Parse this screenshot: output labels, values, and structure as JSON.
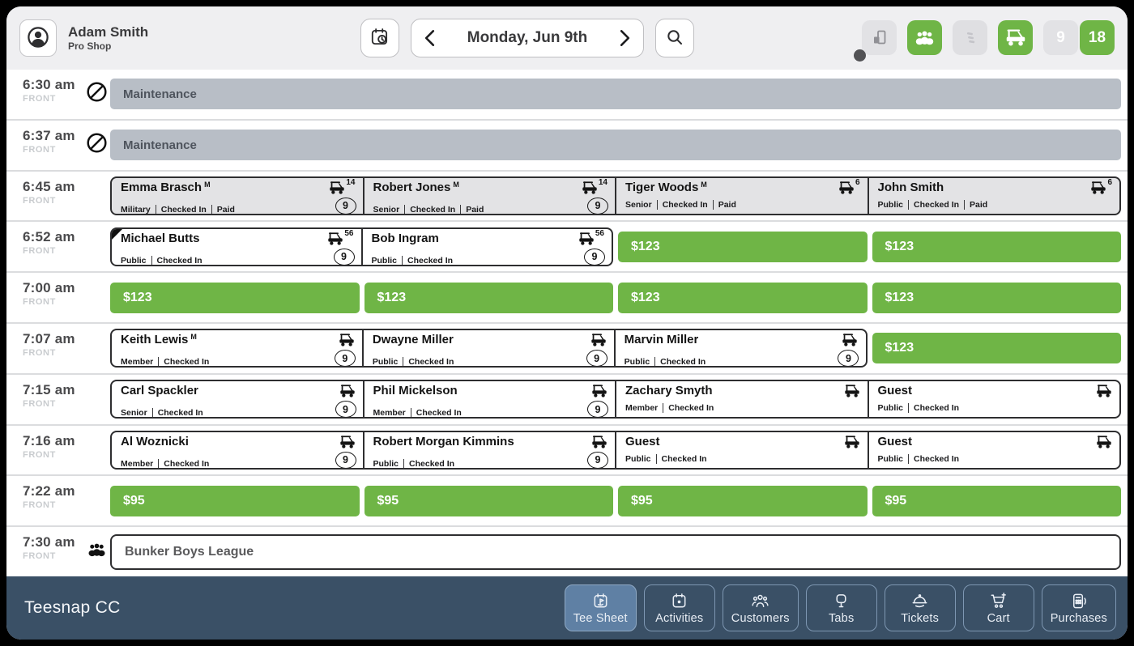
{
  "colors": {
    "accent_green": "#6FB546",
    "maintenance_bg": "#B8BEC6",
    "nav_bg": "#3A5066",
    "nav_active_bg": "#5F80A4",
    "checked_in_bg": "#E3E3E5"
  },
  "labels": {
    "member_badge": "M"
  },
  "header": {
    "user": {
      "name": "Adam Smith",
      "role": "Pro Shop"
    },
    "date_label": "Monday, Jun 9th",
    "toolbar": {
      "groups": [
        {
          "buttons": [
            {
              "name": "terminal",
              "icon": "terminal-icon",
              "variant": "gray"
            }
          ]
        },
        {
          "buttons": [
            {
              "name": "players-filter",
              "icon": "people-icon",
              "variant": "green"
            }
          ]
        },
        {
          "buttons": [
            {
              "name": "walking-filter",
              "icon": "walking-icon",
              "variant": "disabled"
            }
          ]
        },
        {
          "buttons": [
            {
              "name": "cart-filter",
              "icon": "golf-cart-icon",
              "variant": "green"
            }
          ]
        },
        {
          "buttons": [
            {
              "name": "holes-9",
              "label": "9",
              "variant": "gray"
            },
            {
              "name": "holes-18",
              "label": "18",
              "variant": "green"
            }
          ]
        }
      ]
    }
  },
  "tee_sheet": {
    "rows": [
      {
        "time": "6:30 am",
        "course": "FRONT",
        "row_icon": "blocked-icon",
        "items": [
          {
            "type": "maintenance",
            "start": 0,
            "span": 4,
            "label": "Maintenance"
          }
        ]
      },
      {
        "time": "6:37 am",
        "course": "FRONT",
        "row_icon": "blocked-icon",
        "items": [
          {
            "type": "maintenance",
            "start": 0,
            "span": 4,
            "label": "Maintenance"
          }
        ]
      },
      {
        "time": "6:45 am",
        "course": "FRONT",
        "row_icon": null,
        "items": [
          {
            "type": "group",
            "start": 0,
            "span": 4,
            "checked": true,
            "players": [
              {
                "name": "Emma Brasch",
                "member": true,
                "tags": [
                  "Military",
                  "Checked In",
                  "Paid"
                ],
                "cart": "14",
                "holes": "9",
                "note": false
              },
              {
                "name": "Robert Jones",
                "member": true,
                "tags": [
                  "Senior",
                  "Checked In",
                  "Paid"
                ],
                "cart": "14",
                "holes": "9",
                "note": false
              },
              {
                "name": "Tiger Woods",
                "member": true,
                "tags": [
                  "Senior",
                  "Checked In",
                  "Paid"
                ],
                "cart": "6",
                "holes": null,
                "note": false
              },
              {
                "name": "John Smith",
                "member": false,
                "tags": [
                  "Public",
                  "Checked In",
                  "Paid"
                ],
                "cart": "6",
                "holes": null,
                "note": false
              }
            ]
          }
        ]
      },
      {
        "time": "6:52 am",
        "course": "FRONT",
        "row_icon": null,
        "items": [
          {
            "type": "group",
            "start": 0,
            "span": 2,
            "checked": false,
            "players": [
              {
                "name": "Michael Butts",
                "member": false,
                "tags": [
                  "Public",
                  "Checked In"
                ],
                "cart": "56",
                "holes": "9",
                "note": true
              },
              {
                "name": "Bob Ingram",
                "member": false,
                "tags": [
                  "Public",
                  "Checked In"
                ],
                "cart": "56",
                "holes": "9",
                "note": false
              }
            ]
          },
          {
            "type": "price",
            "start": 2,
            "span": 1,
            "label": "$123"
          },
          {
            "type": "price",
            "start": 3,
            "span": 1,
            "label": "$123"
          }
        ]
      },
      {
        "time": "7:00 am",
        "course": "FRONT",
        "row_icon": null,
        "items": [
          {
            "type": "price",
            "start": 0,
            "span": 1,
            "label": "$123"
          },
          {
            "type": "price",
            "start": 1,
            "span": 1,
            "label": "$123"
          },
          {
            "type": "price",
            "start": 2,
            "span": 1,
            "label": "$123"
          },
          {
            "type": "price",
            "start": 3,
            "span": 1,
            "label": "$123"
          }
        ]
      },
      {
        "time": "7:07 am",
        "course": "FRONT",
        "row_icon": null,
        "items": [
          {
            "type": "group",
            "start": 0,
            "span": 3,
            "checked": false,
            "players": [
              {
                "name": "Keith Lewis",
                "member": true,
                "tags": [
                  "Member",
                  "Checked In"
                ],
                "cart": null,
                "holes": "9",
                "note": false
              },
              {
                "name": "Dwayne Miller",
                "member": false,
                "tags": [
                  "Public",
                  "Checked In"
                ],
                "cart": null,
                "holes": "9",
                "note": false
              },
              {
                "name": "Marvin Miller",
                "member": false,
                "tags": [
                  "Public",
                  "Checked In"
                ],
                "cart": null,
                "holes": "9",
                "note": false
              }
            ]
          },
          {
            "type": "price",
            "start": 3,
            "span": 1,
            "label": "$123"
          }
        ]
      },
      {
        "time": "7:15 am",
        "course": "FRONT",
        "row_icon": null,
        "items": [
          {
            "type": "group",
            "start": 0,
            "span": 4,
            "checked": false,
            "players": [
              {
                "name": "Carl Spackler",
                "member": false,
                "tags": [
                  "Senior",
                  "Checked In"
                ],
                "cart": null,
                "holes": "9",
                "note": false
              },
              {
                "name": "Phil Mickelson",
                "member": false,
                "tags": [
                  "Member",
                  "Checked In"
                ],
                "cart": null,
                "holes": "9",
                "note": false
              },
              {
                "name": "Zachary Smyth",
                "member": false,
                "tags": [
                  "Member",
                  "Checked In"
                ],
                "cart": null,
                "holes": null,
                "note": false
              },
              {
                "name": "Guest",
                "member": false,
                "tags": [
                  "Public",
                  "Checked In"
                ],
                "cart": null,
                "holes": null,
                "note": false
              }
            ]
          }
        ]
      },
      {
        "time": "7:16 am",
        "course": "FRONT",
        "row_icon": null,
        "items": [
          {
            "type": "group",
            "start": 0,
            "span": 4,
            "checked": false,
            "players": [
              {
                "name": "Al Woznicki",
                "member": false,
                "tags": [
                  "Member",
                  "Checked In"
                ],
                "cart": null,
                "holes": "9",
                "note": false
              },
              {
                "name": "Robert Morgan Kimmins",
                "member": false,
                "tags": [
                  "Public",
                  "Checked In"
                ],
                "cart": null,
                "holes": "9",
                "note": false
              },
              {
                "name": "Guest",
                "member": false,
                "tags": [
                  "Public",
                  "Checked In"
                ],
                "cart": null,
                "holes": null,
                "note": false
              },
              {
                "name": "Guest",
                "member": false,
                "tags": [
                  "Public",
                  "Checked In"
                ],
                "cart": null,
                "holes": null,
                "note": false
              }
            ]
          }
        ]
      },
      {
        "time": "7:22 am",
        "course": "FRONT",
        "row_icon": null,
        "items": [
          {
            "type": "price",
            "start": 0,
            "span": 1,
            "label": "$95"
          },
          {
            "type": "price",
            "start": 1,
            "span": 1,
            "label": "$95"
          },
          {
            "type": "price",
            "start": 2,
            "span": 1,
            "label": "$95"
          },
          {
            "type": "price",
            "start": 3,
            "span": 1,
            "label": "$95"
          }
        ]
      },
      {
        "time": "7:30 am",
        "course": "FRONT",
        "row_icon": "league-icon",
        "items": [
          {
            "type": "league",
            "start": 0,
            "span": 4,
            "label": "Bunker Boys League"
          }
        ]
      }
    ]
  },
  "bottom_nav": {
    "brand": "Teesnap CC",
    "items": [
      {
        "label": "Tee Sheet",
        "icon": "tee-sheet-icon",
        "active": true
      },
      {
        "label": "Activities",
        "icon": "activities-icon",
        "active": false
      },
      {
        "label": "Customers",
        "icon": "customers-icon",
        "active": false
      },
      {
        "label": "Tabs",
        "icon": "tabs-icon",
        "active": false
      },
      {
        "label": "Tickets",
        "icon": "tickets-icon",
        "active": false
      },
      {
        "label": "Cart",
        "icon": "cart-icon",
        "active": false
      },
      {
        "label": "Purchases",
        "icon": "purchases-icon",
        "active": false
      }
    ]
  }
}
